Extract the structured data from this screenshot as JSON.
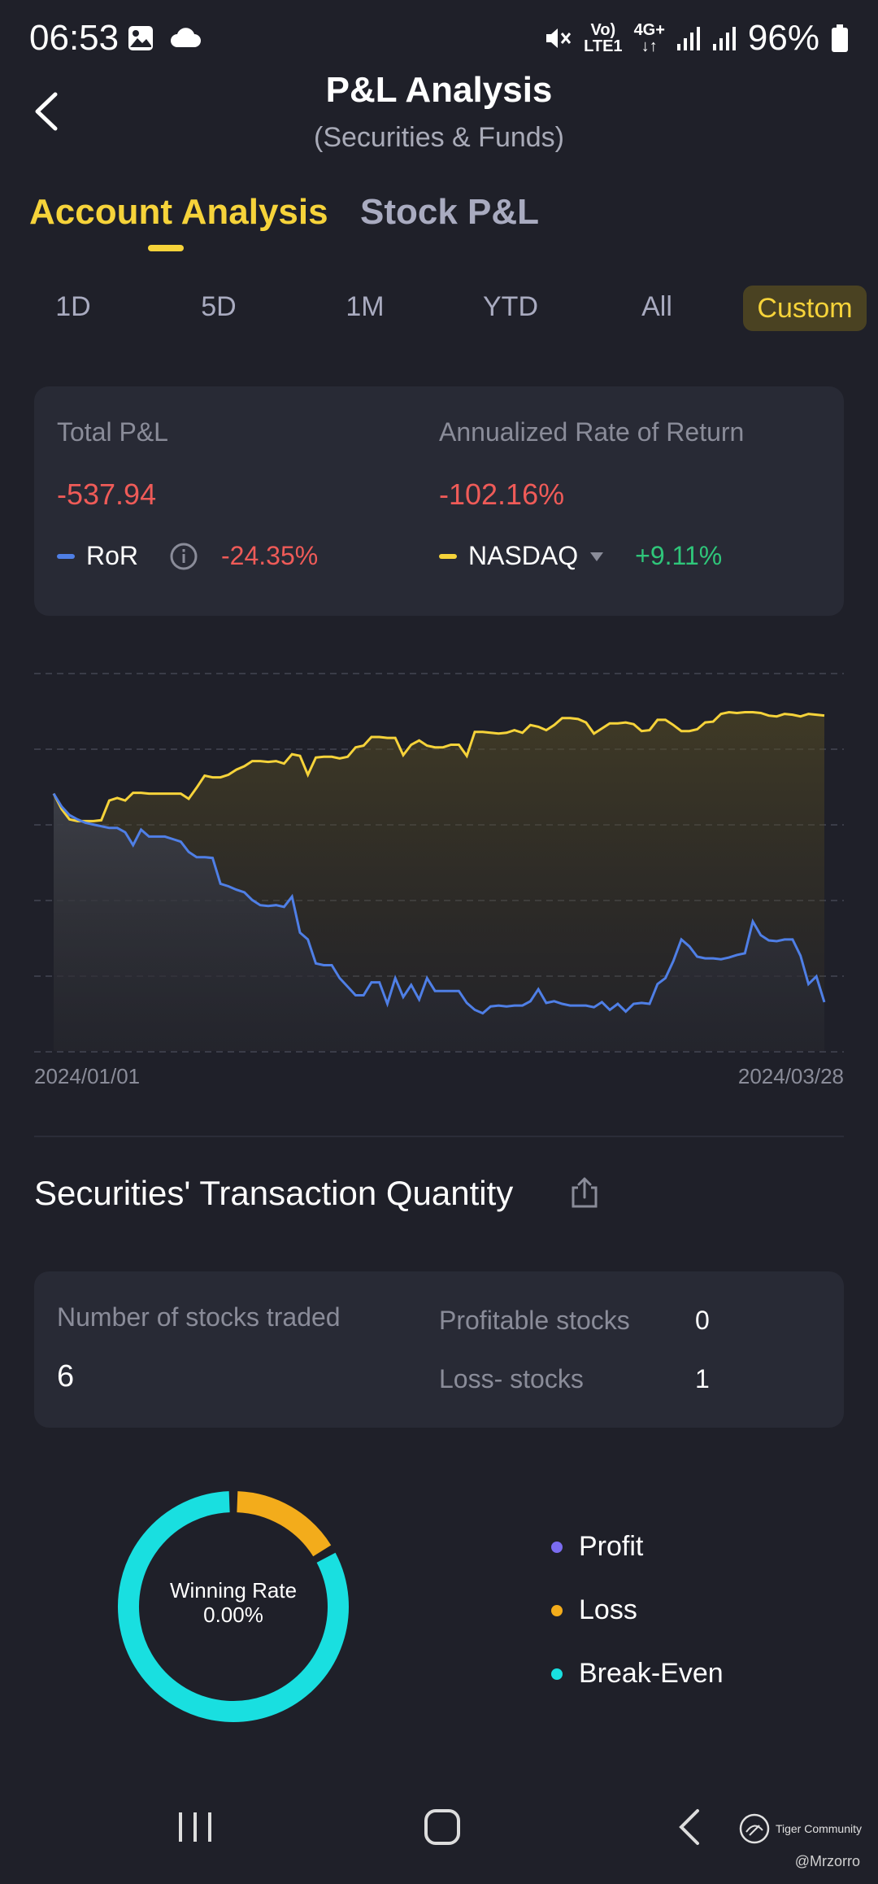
{
  "status_bar": {
    "time": "06:53",
    "battery": "96%",
    "network_top": "Vo)",
    "network_bottom": "LTE1",
    "data_top": "4G+",
    "icons": [
      "image-icon",
      "cloud-icon",
      "mute-icon",
      "signal-icon",
      "signal-r-icon",
      "battery-icon"
    ]
  },
  "header": {
    "title": "P&L Analysis",
    "subtitle": "(Securities & Funds)"
  },
  "tabs": [
    {
      "label": "Account Analysis",
      "active": true
    },
    {
      "label": "Stock P&L",
      "active": false
    }
  ],
  "periods": [
    {
      "label": "1D"
    },
    {
      "label": "5D"
    },
    {
      "label": "1M"
    },
    {
      "label": "YTD"
    },
    {
      "label": "All"
    },
    {
      "label": "Custom",
      "active": true
    }
  ],
  "summary": {
    "total_pl_label": "Total P&L",
    "total_pl_value": "-537.94",
    "annualized_label": "Annualized Rate of Return",
    "annualized_value": "-102.16%",
    "ror_label": "RoR",
    "ror_value": "-24.35%",
    "benchmark_label": "NASDAQ",
    "benchmark_value": "+9.11%"
  },
  "chart_data": {
    "type": "line",
    "x_start": "2024/01/01",
    "x_end": "2024/03/28",
    "grid": true,
    "series": [
      {
        "name": "RoR",
        "color": "#4f7fe6",
        "values": [
          0,
          -1.5,
          -2.5,
          -3,
          -3.4,
          -3.6,
          -3.8,
          -4,
          -4,
          -4.5,
          -6,
          -4.2,
          -5,
          -5,
          -5,
          -5.3,
          -5.6,
          -6.8,
          -7.4,
          -7.4,
          -7.5,
          -10.5,
          -10.8,
          -11.2,
          -11.5,
          -12.4,
          -13,
          -13.1,
          -13,
          -13.2,
          -12,
          -16.2,
          -17,
          -19.8,
          -20,
          -20,
          -21.5,
          -22.5,
          -23.5,
          -23.5,
          -22,
          -22,
          -24.5,
          -21.5,
          -23.7,
          -22.3,
          -24,
          -21.5,
          -23,
          -23,
          -23,
          -23,
          -24.4,
          -25.2,
          -25.6,
          -24.8,
          -24.7,
          -24.8,
          -24.7,
          -24.7,
          -24.2,
          -22.8,
          -24.4,
          -24.2,
          -24.5,
          -24.7,
          -24.7,
          -24.7,
          -24.9,
          -24.3,
          -25.2,
          -24.5,
          -25.4,
          -24.5,
          -24.4,
          -24.5,
          -22.2,
          -21.5,
          -19.5,
          -17,
          -17.8,
          -19,
          -19.2,
          -19.2,
          -19.3,
          -19.1,
          -18.8,
          -18.6,
          -14.9,
          -16.5,
          -17.1,
          -17.2,
          -17,
          -17,
          -18.9,
          -22.2,
          -21.3,
          -24.3
        ]
      },
      {
        "name": "NASDAQ",
        "color": "#f6d33a",
        "values": [
          0,
          -1.8,
          -3,
          -3.2,
          -3.2,
          -3.2,
          -3.1,
          -0.8,
          -0.5,
          -0.8,
          0.1,
          0.1,
          0,
          0,
          0,
          0,
          0,
          -0.6,
          0.7,
          2.1,
          1.9,
          1.9,
          2.2,
          2.8,
          3.2,
          3.8,
          3.8,
          3.7,
          3.8,
          3.5,
          4.6,
          4.4,
          2.2,
          4.2,
          4.3,
          4.3,
          4.1,
          4.3,
          5.4,
          5.6,
          6.6,
          6.6,
          6.5,
          6.5,
          4.5,
          5.7,
          6.2,
          5.6,
          5.4,
          5.4,
          5.7,
          5.7,
          4.4,
          7.2,
          7.2,
          7.1,
          7,
          7.1,
          7.4,
          7.1,
          8,
          7.8,
          7.4,
          8,
          8.8,
          8.8,
          8.7,
          8.3,
          7,
          7.6,
          8.2,
          8.2,
          8.3,
          8.1,
          7.3,
          7.4,
          8.6,
          8.6,
          8,
          7.3,
          7.3,
          7.5,
          8.3,
          8.4,
          9.3,
          9.5,
          9.4,
          9.5,
          9.5,
          9.4,
          9.1,
          9,
          9.3,
          9.2,
          9,
          9.3,
          9.2,
          9.11
        ]
      }
    ]
  },
  "transactions": {
    "section_title": "Securities' Transaction Quantity",
    "stocks_traded_label": "Number of stocks traded",
    "stocks_traded_value": "6",
    "profitable_label": "Profitable stocks",
    "profitable_value": "0",
    "loss_label": "Loss- stocks",
    "loss_value": "1"
  },
  "donut": {
    "center_label": "Winning Rate",
    "center_value": "0.00%",
    "segments": [
      {
        "name": "Profit",
        "color": "#7b6cf0",
        "fraction": 0
      },
      {
        "name": "Loss",
        "color": "#f3ac1b",
        "fraction": 0.1667
      },
      {
        "name": "Break-Even",
        "color": "#19dfe0",
        "fraction": 0.8333
      }
    ]
  },
  "watermark": {
    "brand": "Tiger Community",
    "handle": "@Mrzorro"
  }
}
